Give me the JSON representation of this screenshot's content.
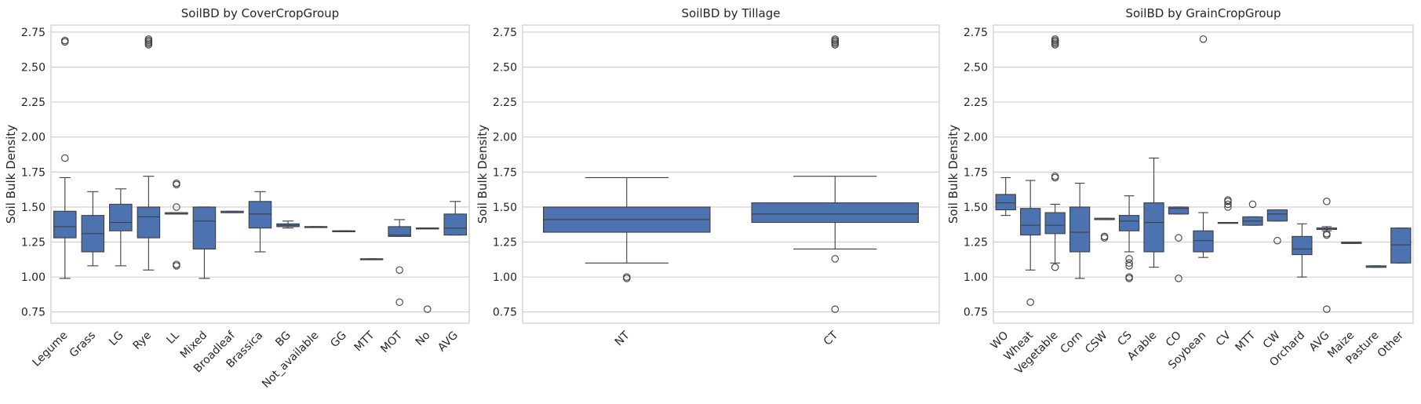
{
  "chart_data": [
    {
      "type": "box",
      "title": "SoilBD by CoverCropGroup",
      "ylabel": "Soil Bulk Density",
      "ylim": [
        0.67,
        2.8
      ],
      "yticks": [
        0.75,
        1.0,
        1.25,
        1.5,
        1.75,
        2.0,
        2.25,
        2.5,
        2.75
      ],
      "color": "#4c72b0",
      "grid": true,
      "categories": [
        "Legume",
        "Grass",
        "LG",
        "Rye",
        "LL",
        "Mixed",
        "Broadleaf",
        "Brassica",
        "BG",
        "Not_available",
        "GG",
        "MTT",
        "MOT",
        "No",
        "AVG"
      ],
      "boxes": [
        {
          "q1": 1.28,
          "median": 1.36,
          "q3": 1.47,
          "whislo": 0.99,
          "whishi": 1.71,
          "fliers": [
            1.85,
            2.68,
            2.69
          ]
        },
        {
          "q1": 1.18,
          "median": 1.31,
          "q3": 1.44,
          "whislo": 1.08,
          "whishi": 1.61,
          "fliers": []
        },
        {
          "q1": 1.33,
          "median": 1.39,
          "q3": 1.52,
          "whislo": 1.08,
          "whishi": 1.63,
          "fliers": []
        },
        {
          "q1": 1.28,
          "median": 1.43,
          "q3": 1.5,
          "whislo": 1.05,
          "whishi": 1.72,
          "fliers": [
            2.66,
            2.67,
            2.68,
            2.69,
            2.7
          ]
        },
        {
          "q1": 1.45,
          "median": 1.45,
          "q3": 1.46,
          "whislo": 1.45,
          "whishi": 1.46,
          "fliers": [
            1.08,
            1.09,
            1.5,
            1.66,
            1.67
          ]
        },
        {
          "q1": 1.2,
          "median": 1.4,
          "q3": 1.5,
          "whislo": 0.99,
          "whishi": 1.5,
          "fliers": []
        },
        {
          "q1": 1.46,
          "median": 1.46,
          "q3": 1.47,
          "whislo": 1.46,
          "whishi": 1.47,
          "fliers": []
        },
        {
          "q1": 1.35,
          "median": 1.45,
          "q3": 1.54,
          "whislo": 1.18,
          "whishi": 1.61,
          "fliers": []
        },
        {
          "q1": 1.36,
          "median": 1.37,
          "q3": 1.38,
          "whislo": 1.35,
          "whishi": 1.4,
          "fliers": []
        },
        {
          "q1": 1.36,
          "median": 1.36,
          "q3": 1.36,
          "whislo": 1.36,
          "whishi": 1.36,
          "fliers": []
        },
        {
          "q1": 1.33,
          "median": 1.33,
          "q3": 1.33,
          "whislo": 1.33,
          "whishi": 1.33,
          "fliers": []
        },
        {
          "q1": 1.13,
          "median": 1.13,
          "q3": 1.13,
          "whislo": 1.13,
          "whishi": 1.13,
          "fliers": []
        },
        {
          "q1": 1.29,
          "median": 1.3,
          "q3": 1.36,
          "whislo": 1.29,
          "whishi": 1.41,
          "fliers": [
            1.05,
            0.82
          ]
        },
        {
          "q1": 1.35,
          "median": 1.35,
          "q3": 1.35,
          "whislo": 1.35,
          "whishi": 1.35,
          "fliers": [
            0.77
          ]
        },
        {
          "q1": 1.3,
          "median": 1.35,
          "q3": 1.45,
          "whislo": 1.3,
          "whishi": 1.54,
          "fliers": []
        }
      ]
    },
    {
      "type": "box",
      "title": "SoilBD by Tillage",
      "ylabel": "Soil Bulk Density",
      "ylim": [
        0.67,
        2.8
      ],
      "yticks": [
        0.75,
        1.0,
        1.25,
        1.5,
        1.75,
        2.0,
        2.25,
        2.5,
        2.75
      ],
      "color": "#4c72b0",
      "grid": true,
      "categories": [
        "NT",
        "CT"
      ],
      "boxes": [
        {
          "q1": 1.32,
          "median": 1.41,
          "q3": 1.5,
          "whislo": 1.1,
          "whishi": 1.71,
          "fliers": [
            0.99,
            1.0
          ]
        },
        {
          "q1": 1.39,
          "median": 1.45,
          "q3": 1.53,
          "whislo": 1.2,
          "whishi": 1.72,
          "fliers": [
            1.13,
            0.77,
            2.66,
            2.67,
            2.68,
            2.69,
            2.7
          ]
        }
      ]
    },
    {
      "type": "box",
      "title": "SoilBD by GrainCropGroup",
      "ylabel": "Soil Bulk Density",
      "ylim": [
        0.67,
        2.8
      ],
      "yticks": [
        0.75,
        1.0,
        1.25,
        1.5,
        1.75,
        2.0,
        2.25,
        2.5,
        2.75
      ],
      "color": "#4c72b0",
      "grid": true,
      "categories": [
        "WO",
        "Wheat",
        "Vegetable",
        "Corn",
        "CSW",
        "CS",
        "Arable",
        "CO",
        "Soybean",
        "CV",
        "MTT",
        "CW",
        "Orchard",
        "AVG",
        "Maize",
        "Pasture",
        "Other"
      ],
      "boxes": [
        {
          "q1": 1.48,
          "median": 1.53,
          "q3": 1.59,
          "whislo": 1.44,
          "whishi": 1.71,
          "fliers": []
        },
        {
          "q1": 1.3,
          "median": 1.37,
          "q3": 1.49,
          "whislo": 1.05,
          "whishi": 1.69,
          "fliers": [
            0.82
          ]
        },
        {
          "q1": 1.31,
          "median": 1.37,
          "q3": 1.46,
          "whislo": 1.1,
          "whishi": 1.52,
          "fliers": [
            1.07,
            1.71,
            1.72,
            2.66,
            2.67,
            2.68,
            2.69,
            2.7
          ]
        },
        {
          "q1": 1.18,
          "median": 1.32,
          "q3": 1.5,
          "whislo": 0.99,
          "whishi": 1.67,
          "fliers": []
        },
        {
          "q1": 1.41,
          "median": 1.41,
          "q3": 1.42,
          "whislo": 1.41,
          "whishi": 1.42,
          "fliers": [
            1.28,
            1.29
          ]
        },
        {
          "q1": 1.33,
          "median": 1.4,
          "q3": 1.44,
          "whislo": 1.18,
          "whishi": 1.58,
          "fliers": [
            1.13,
            1.1,
            1.08,
            0.99,
            1.0
          ]
        },
        {
          "q1": 1.18,
          "median": 1.39,
          "q3": 1.53,
          "whislo": 1.07,
          "whishi": 1.85,
          "fliers": []
        },
        {
          "q1": 1.45,
          "median": 1.49,
          "q3": 1.5,
          "whislo": 1.45,
          "whishi": 1.5,
          "fliers": [
            1.28,
            0.99
          ]
        },
        {
          "q1": 1.18,
          "median": 1.26,
          "q3": 1.33,
          "whislo": 1.14,
          "whishi": 1.46,
          "fliers": [
            2.7
          ]
        },
        {
          "q1": 1.39,
          "median": 1.39,
          "q3": 1.39,
          "whislo": 1.39,
          "whishi": 1.39,
          "fliers": [
            1.5,
            1.52,
            1.54,
            1.55
          ]
        },
        {
          "q1": 1.37,
          "median": 1.4,
          "q3": 1.43,
          "whislo": 1.37,
          "whishi": 1.43,
          "fliers": [
            1.52
          ]
        },
        {
          "q1": 1.4,
          "median": 1.45,
          "q3": 1.48,
          "whislo": 1.4,
          "whishi": 1.48,
          "fliers": [
            1.26
          ]
        },
        {
          "q1": 1.16,
          "median": 1.2,
          "q3": 1.29,
          "whislo": 1.0,
          "whishi": 1.38,
          "fliers": []
        },
        {
          "q1": 1.34,
          "median": 1.35,
          "q3": 1.35,
          "whislo": 1.33,
          "whishi": 1.36,
          "fliers": [
            1.54,
            1.3,
            1.31,
            0.77
          ]
        },
        {
          "q1": 1.24,
          "median": 1.24,
          "q3": 1.25,
          "whislo": 1.24,
          "whishi": 1.25,
          "fliers": []
        },
        {
          "q1": 1.07,
          "median": 1.07,
          "q3": 1.08,
          "whislo": 1.07,
          "whishi": 1.08,
          "fliers": []
        },
        {
          "q1": 1.1,
          "median": 1.23,
          "q3": 1.35,
          "whislo": 1.1,
          "whishi": 1.35,
          "fliers": []
        }
      ]
    }
  ]
}
